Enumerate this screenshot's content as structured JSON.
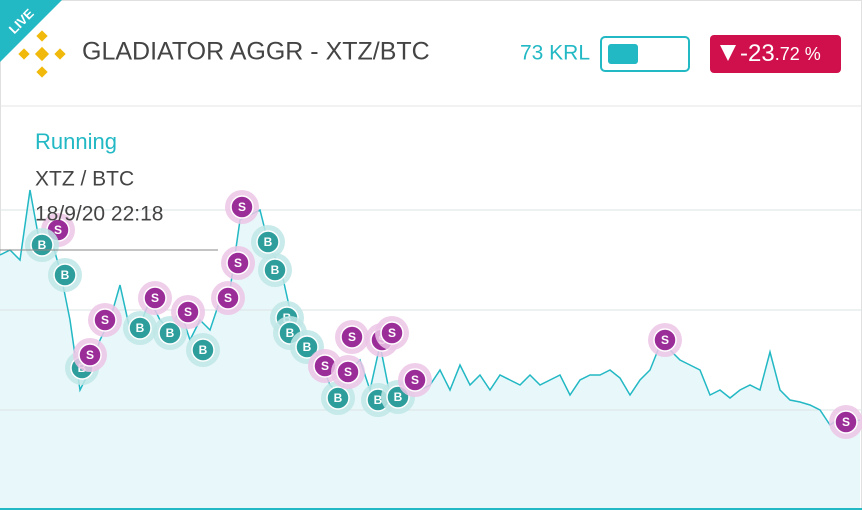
{
  "header": {
    "badge": "LIVE",
    "title": "GLADIATOR AGGR - XTZ/BTC",
    "balance": "73 KRL",
    "change_whole": "-23",
    "change_fraction": ".72 %"
  },
  "status": {
    "state": "Running",
    "pair": "XTZ / BTC",
    "datetime": "18/9/20 22:18"
  },
  "chart_data": {
    "type": "line",
    "color": "#22b8c4",
    "ylim": [
      0,
      100
    ],
    "yticks": [
      25,
      50,
      75
    ],
    "grid": true,
    "values": [
      63.75,
      65,
      62.5,
      80,
      66.25,
      68.75,
      60,
      47.5,
      30,
      35,
      42.5,
      47.5,
      56.25,
      45,
      46.25,
      52.5,
      47.5,
      45,
      50,
      42.5,
      47.5,
      45,
      52.5,
      55,
      72.5,
      73.75,
      75,
      65,
      61.25,
      50,
      45,
      41.25,
      37.5,
      31.25,
      28.75,
      35,
      37.5,
      30,
      41.25,
      28.75,
      31.25,
      33.75,
      30,
      31.25,
      35,
      30,
      36.25,
      31.25,
      33.75,
      30,
      33.75,
      32.5,
      31.25,
      33.75,
      31.25,
      32.5,
      33.75,
      28.75,
      32.5,
      33.75,
      33.75,
      35,
      33,
      28.75,
      32.5,
      35,
      41.25,
      40,
      37.5,
      36.25,
      35,
      28.75,
      30,
      28,
      30,
      31.25,
      30,
      39.5,
      30,
      27.5,
      27,
      26.25,
      25,
      21.25,
      23,
      22,
      22.5
    ],
    "trades": [
      {
        "x": 5.8,
        "y": 70,
        "side": "S"
      },
      {
        "x": 4.2,
        "y": 66.25,
        "side": "B"
      },
      {
        "x": 6.5,
        "y": 58.75,
        "side": "B"
      },
      {
        "x": 10.5,
        "y": 47.5,
        "side": "S"
      },
      {
        "x": 8.2,
        "y": 35.5,
        "side": "B"
      },
      {
        "x": 9,
        "y": 38.75,
        "side": "S"
      },
      {
        "x": 14,
        "y": 45.5,
        "side": "B"
      },
      {
        "x": 15.5,
        "y": 53,
        "side": "S"
      },
      {
        "x": 17,
        "y": 44.25,
        "side": "B"
      },
      {
        "x": 18.8,
        "y": 49.5,
        "side": "S"
      },
      {
        "x": 20.3,
        "y": 40,
        "side": "B"
      },
      {
        "x": 22.8,
        "y": 53,
        "side": "S"
      },
      {
        "x": 23.8,
        "y": 61.75,
        "side": "S"
      },
      {
        "x": 24.2,
        "y": 75.75,
        "side": "S"
      },
      {
        "x": 26.8,
        "y": 67,
        "side": "B"
      },
      {
        "x": 27.5,
        "y": 60,
        "side": "B"
      },
      {
        "x": 28.7,
        "y": 48,
        "side": "B"
      },
      {
        "x": 29,
        "y": 44.25,
        "side": "B"
      },
      {
        "x": 30.7,
        "y": 40.75,
        "side": "B"
      },
      {
        "x": 33.8,
        "y": 28,
        "side": "B"
      },
      {
        "x": 32.5,
        "y": 36,
        "side": "S"
      },
      {
        "x": 34.8,
        "y": 34.5,
        "side": "S"
      },
      {
        "x": 35.2,
        "y": 43.25,
        "side": "S"
      },
      {
        "x": 37.8,
        "y": 27.5,
        "side": "B"
      },
      {
        "x": 38.2,
        "y": 42.5,
        "side": "S"
      },
      {
        "x": 39.2,
        "y": 44.25,
        "side": "S"
      },
      {
        "x": 39.8,
        "y": 28.25,
        "side": "B"
      },
      {
        "x": 41.5,
        "y": 32.5,
        "side": "S"
      },
      {
        "x": 66.5,
        "y": 42.5,
        "side": "S"
      },
      {
        "x": 84.6,
        "y": 22,
        "side": "S"
      }
    ]
  }
}
